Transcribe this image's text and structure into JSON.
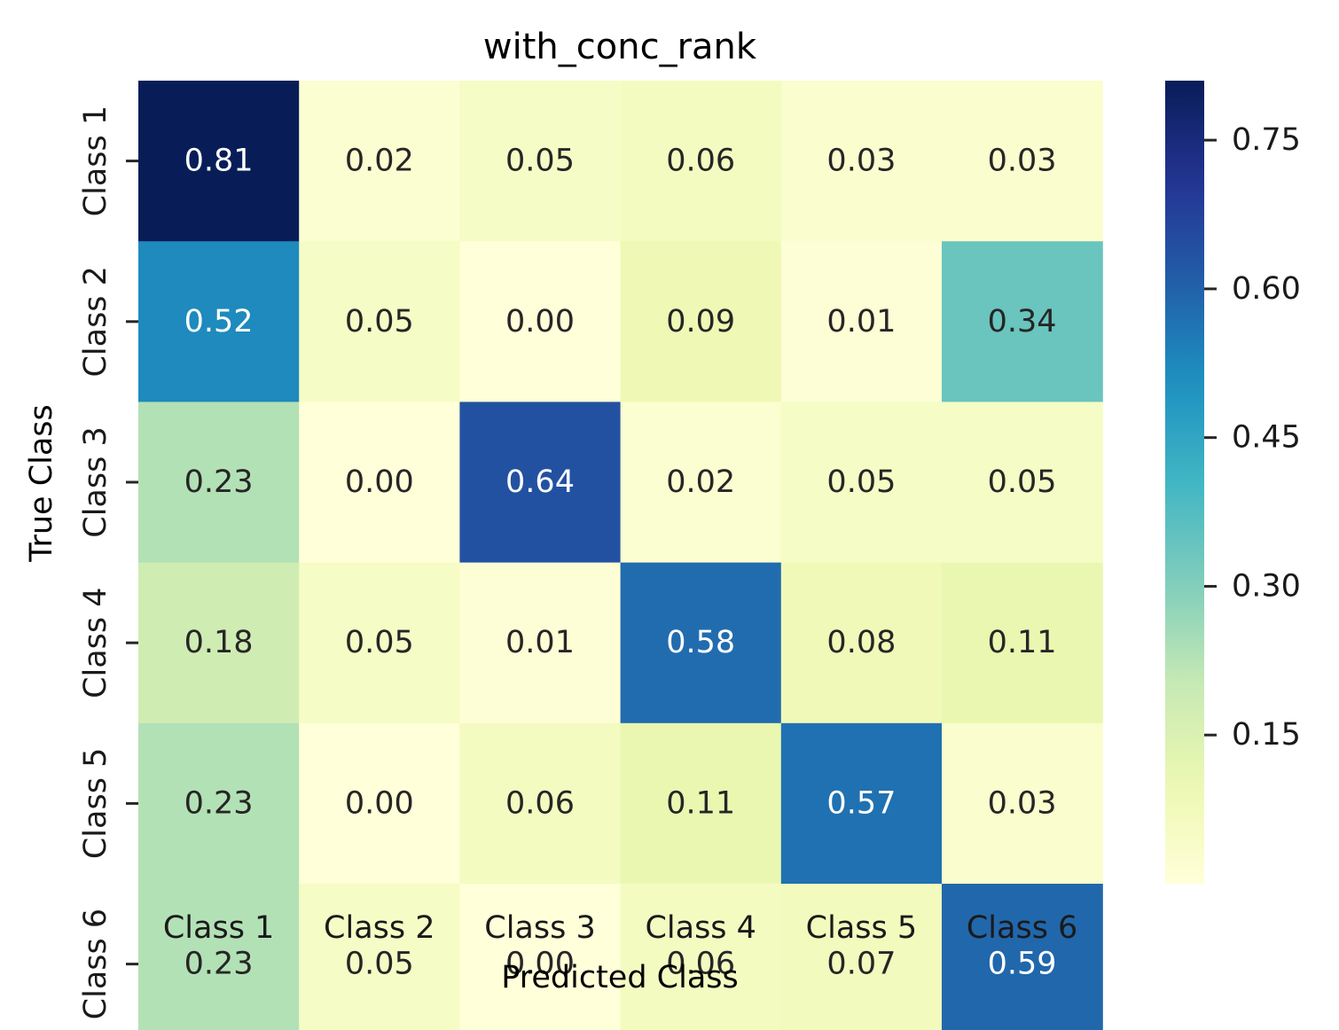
{
  "chart_data": {
    "type": "heatmap",
    "title": "with_conc_rank",
    "xlabel": "Predicted Class",
    "ylabel": "True Class",
    "x_categories": [
      "Class 1",
      "Class 2",
      "Class 3",
      "Class 4",
      "Class 5",
      "Class 6"
    ],
    "y_categories": [
      "Class 1",
      "Class 2",
      "Class 3",
      "Class 4",
      "Class 5",
      "Class 6"
    ],
    "values": [
      [
        0.81,
        0.02,
        0.05,
        0.06,
        0.03,
        0.03
      ],
      [
        0.52,
        0.05,
        0.0,
        0.09,
        0.01,
        0.34
      ],
      [
        0.23,
        0.0,
        0.64,
        0.02,
        0.05,
        0.05
      ],
      [
        0.18,
        0.05,
        0.01,
        0.58,
        0.08,
        0.11
      ],
      [
        0.23,
        0.0,
        0.06,
        0.11,
        0.57,
        0.03
      ],
      [
        0.23,
        0.05,
        0.0,
        0.06,
        0.07,
        0.59
      ]
    ],
    "colormap": "YlGnBu",
    "colorbar": {
      "range": [
        0.0,
        0.81
      ],
      "ticks": [
        0.15,
        0.3,
        0.45,
        0.6,
        0.75
      ],
      "tick_labels": [
        "0.15",
        "0.30",
        "0.45",
        "0.60",
        "0.75"
      ]
    },
    "annotation_colors": {
      "dark_text": "#262626",
      "light_text": "#ffffff"
    }
  }
}
